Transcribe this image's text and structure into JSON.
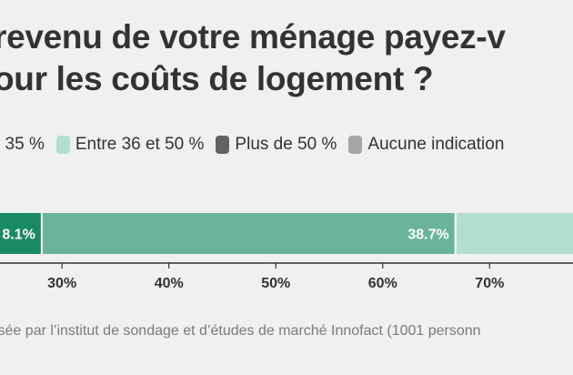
{
  "title_lines": [
    "revenu de votre ménage payez-v",
    "our les coûts de logement ?"
  ],
  "source": "isée par l’institut de sondage et d’études de marché Innofact (1001 personn",
  "chart_data": {
    "type": "bar",
    "orientation": "horizontal",
    "stacked": true,
    "legend_position": "top",
    "legend": [
      {
        "label": ": 35 %",
        "color": "#1a8a64"
      },
      {
        "label": "Entre 36 et 50 %",
        "color": "#b3ddcc"
      },
      {
        "label": "Plus de 50 %",
        "color": "#626262"
      },
      {
        "label": "Aucune indication",
        "color": "#a5a5a5"
      }
    ],
    "segments": [
      {
        "start": 0,
        "end": 28.1,
        "color": "#1a8a64",
        "label": "8.1%"
      },
      {
        "start": 28.1,
        "end": 66.8,
        "color": "#6ab49a",
        "label": "38.7%"
      },
      {
        "start": 66.8,
        "end": 100,
        "color": "#b3ddcc",
        "label": ""
      }
    ],
    "x_ticks": [
      30,
      40,
      50,
      60,
      70
    ],
    "x_tick_format": "%",
    "xlim": [
      24.2,
      77.8
    ],
    "grid": false
  }
}
